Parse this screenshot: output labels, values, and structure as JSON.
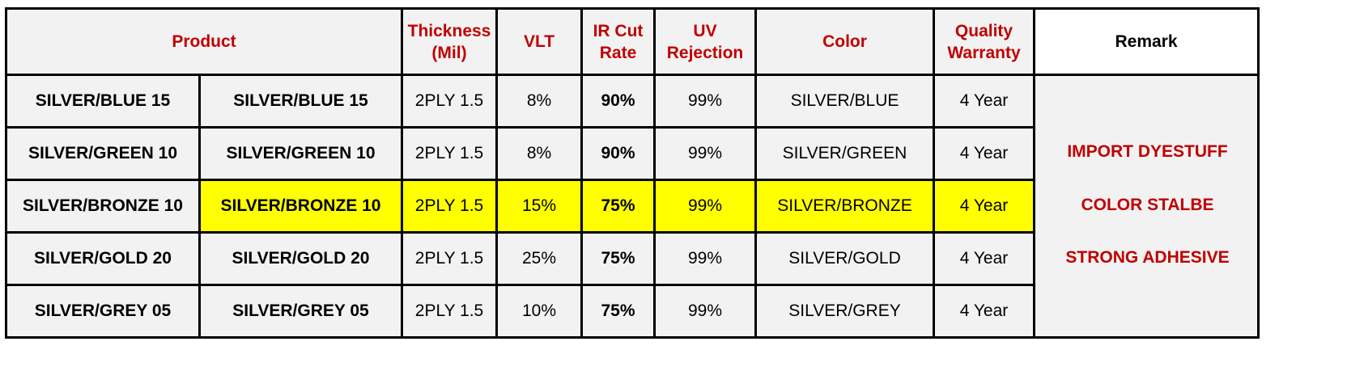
{
  "headers": {
    "product": "Product",
    "thickness": [
      "Thickness",
      "(Mil)"
    ],
    "vlt": "VLT",
    "ir_cut": [
      "IR Cut",
      "Rate"
    ],
    "uv": [
      "UV",
      "Rejection"
    ],
    "color": "Color",
    "warranty": [
      "Quality",
      "Warranty"
    ],
    "remark": "Remark"
  },
  "rows": [
    {
      "label": "SILVER/BLUE 15",
      "name": "SILVER/BLUE 15",
      "thickness": "2PLY 1.5",
      "vlt": "8%",
      "ir": "90%",
      "uv": "99%",
      "color": "SILVER/BLUE",
      "warranty": "4 Year"
    },
    {
      "label": "SILVER/GREEN 10",
      "name": "SILVER/GREEN 10",
      "thickness": "2PLY 1.5",
      "vlt": "8%",
      "ir": "90%",
      "uv": "99%",
      "color": "SILVER/GREEN",
      "warranty": "4 Year"
    },
    {
      "label": "SILVER/BRONZE 10",
      "name": "SILVER/BRONZE 10",
      "thickness": "2PLY 1.5",
      "vlt": "15%",
      "ir": "75%",
      "uv": "99%",
      "color": "SILVER/BRONZE",
      "warranty": "4 Year",
      "highlighted": true
    },
    {
      "label": "SILVER/GOLD 20",
      "name": "SILVER/GOLD 20",
      "thickness": "2PLY 1.5",
      "vlt": "25%",
      "ir": "75%",
      "uv": "99%",
      "color": "SILVER/GOLD",
      "warranty": "4 Year"
    },
    {
      "label": "SILVER/GREY 05",
      "name": "SILVER/GREY 05",
      "thickness": "2PLY 1.5",
      "vlt": "10%",
      "ir": "75%",
      "uv": "99%",
      "color": "SILVER/GREY",
      "warranty": "4 Year",
      "vlt_red": true
    }
  ],
  "remark_lines": [
    "",
    "IMPORT DYESTUFF",
    "COLOR STALBE",
    "STRONG ADHESIVE",
    ""
  ],
  "colors": {
    "header_text": "#c00000",
    "label_red": "#ff0000",
    "ir_text": "#943126",
    "highlight": "#ffff00",
    "cell_bg": "#f2f2f2"
  }
}
